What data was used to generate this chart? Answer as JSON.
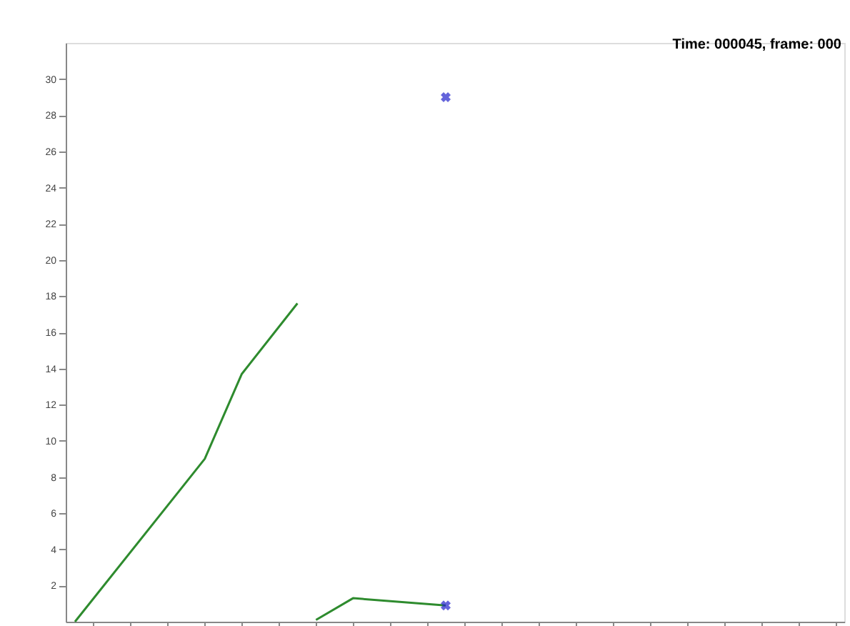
{
  "chart_data": {
    "type": "line",
    "annotations": [
      "Time: 000045, frame: 000"
    ],
    "categories": [
      null,
      null,
      null,
      null,
      null,
      null,
      null,
      null,
      null,
      null,
      null,
      null,
      null,
      null,
      null,
      null,
      null,
      null,
      null,
      null,
      null,
      null,
      null,
      null,
      null,
      null,
      null,
      null,
      null,
      null,
      null,
      null,
      null,
      null,
      null,
      null,
      null,
      null,
      null,
      null,
      null,
      null
    ],
    "series": [
      {
        "color": "#2e8b2e",
        "values": [
          0,
          null,
          null,
          null,
          null,
          null,
          null,
          9.0,
          null,
          13.7,
          null,
          null,
          17.6,
          null,
          null,
          null,
          null,
          null,
          null,
          null,
          null,
          null,
          null,
          null,
          null,
          null,
          null,
          null,
          null,
          null,
          null,
          null,
          null,
          null,
          null,
          null,
          null,
          null,
          null,
          null,
          null,
          null
        ]
      },
      {
        "color": "#2e8b2e",
        "values": [
          null,
          null,
          null,
          null,
          null,
          null,
          null,
          null,
          null,
          null,
          null,
          null,
          null,
          0.1,
          null,
          1.3,
          null,
          null,
          null,
          null,
          0.9,
          null,
          null,
          null,
          null,
          null,
          null,
          null,
          null,
          null,
          null,
          null,
          null,
          null,
          null,
          null,
          null,
          null,
          null,
          null,
          null,
          null
        ]
      },
      {
        "type": "scatter",
        "color": "#2222cc",
        "marker": "cross",
        "values": [
          null,
          null,
          null,
          null,
          null,
          null,
          null,
          null,
          null,
          null,
          null,
          null,
          null,
          null,
          null,
          null,
          null,
          null,
          null,
          null,
          29.0,
          null,
          null,
          null,
          null,
          null,
          null,
          null,
          null,
          null,
          null,
          null,
          null,
          null,
          null,
          null,
          null,
          null,
          null,
          null,
          null,
          null
        ]
      },
      {
        "type": "scatter",
        "color": "#2222cc",
        "marker": "cross",
        "values": [
          null,
          null,
          null,
          null,
          null,
          null,
          null,
          null,
          null,
          null,
          null,
          null,
          null,
          null,
          null,
          null,
          null,
          null,
          null,
          null,
          0.9,
          null,
          null,
          null,
          null,
          null,
          null,
          null,
          null,
          null,
          null,
          null,
          null,
          null,
          null,
          null,
          null,
          null,
          null,
          null,
          null,
          null
        ]
      }
    ],
    "ylim": [
      0,
      32
    ],
    "yticks": [
      2,
      4,
      6,
      8,
      10,
      12,
      14,
      16,
      18,
      20,
      22,
      24,
      26,
      28,
      30
    ],
    "tick_labels": "y",
    "grid": false
  }
}
